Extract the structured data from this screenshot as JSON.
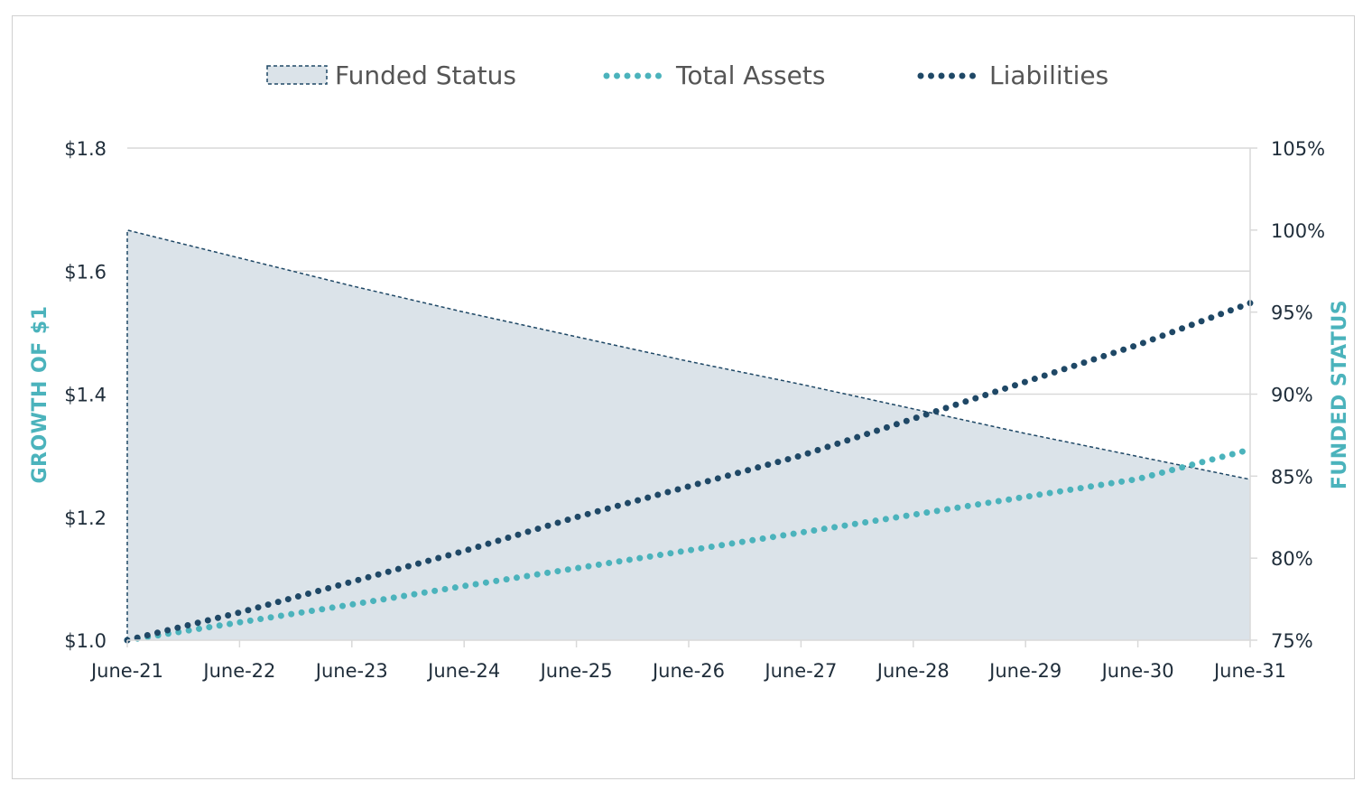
{
  "chart_data": {
    "type": "area",
    "x_labels": [
      "June-21",
      "June-22",
      "June-23",
      "June-24",
      "June-25",
      "June-26",
      "June-27",
      "June-28",
      "June-29",
      "June-30",
      "June-31"
    ],
    "left_axis": {
      "label": "GROWTH OF $1",
      "ylim": [
        1.0,
        1.8
      ],
      "ticks": [
        1.0,
        1.2,
        1.4,
        1.6,
        1.8
      ],
      "tick_labels": [
        "$1.0",
        "$1.2",
        "$1.4",
        "$1.6",
        "$1.8"
      ]
    },
    "right_axis": {
      "label": "FUNDED STATUS",
      "ylim": [
        75,
        105
      ],
      "ticks": [
        75,
        80,
        85,
        90,
        95,
        100,
        105
      ],
      "tick_labels": [
        "75%",
        "80%",
        "85%",
        "90%",
        "95%",
        "100%",
        "105%"
      ]
    },
    "series": [
      {
        "name": "Funded Status",
        "kind": "area",
        "axis": "right",
        "color": "#dbe3e9",
        "edge_color": "#1f4866",
        "values": [
          100.0,
          98.3,
          96.6,
          95.0,
          93.5,
          92.0,
          90.6,
          89.1,
          87.6,
          86.2,
          84.8
        ]
      },
      {
        "name": "Total Assets",
        "kind": "dotted-line",
        "axis": "left",
        "color": "#4bb3bc",
        "values": [
          1.0,
          1.029,
          1.058,
          1.088,
          1.117,
          1.146,
          1.175,
          1.204,
          1.233,
          1.262,
          1.31
        ]
      },
      {
        "name": "Liabilities",
        "kind": "dotted-line",
        "axis": "left",
        "color": "#1f4866",
        "values": [
          1.0,
          1.045,
          1.095,
          1.145,
          1.2,
          1.25,
          1.3,
          1.36,
          1.42,
          1.48,
          1.548
        ]
      }
    ],
    "grid": "horizontal",
    "legend_position": "top"
  },
  "colors": {
    "teal": "#4bb3bc",
    "navy": "#1f4866",
    "area_fill": "#dbe3e9",
    "grid": "#d9d9d9",
    "tick_text": "#1f2d3a"
  }
}
